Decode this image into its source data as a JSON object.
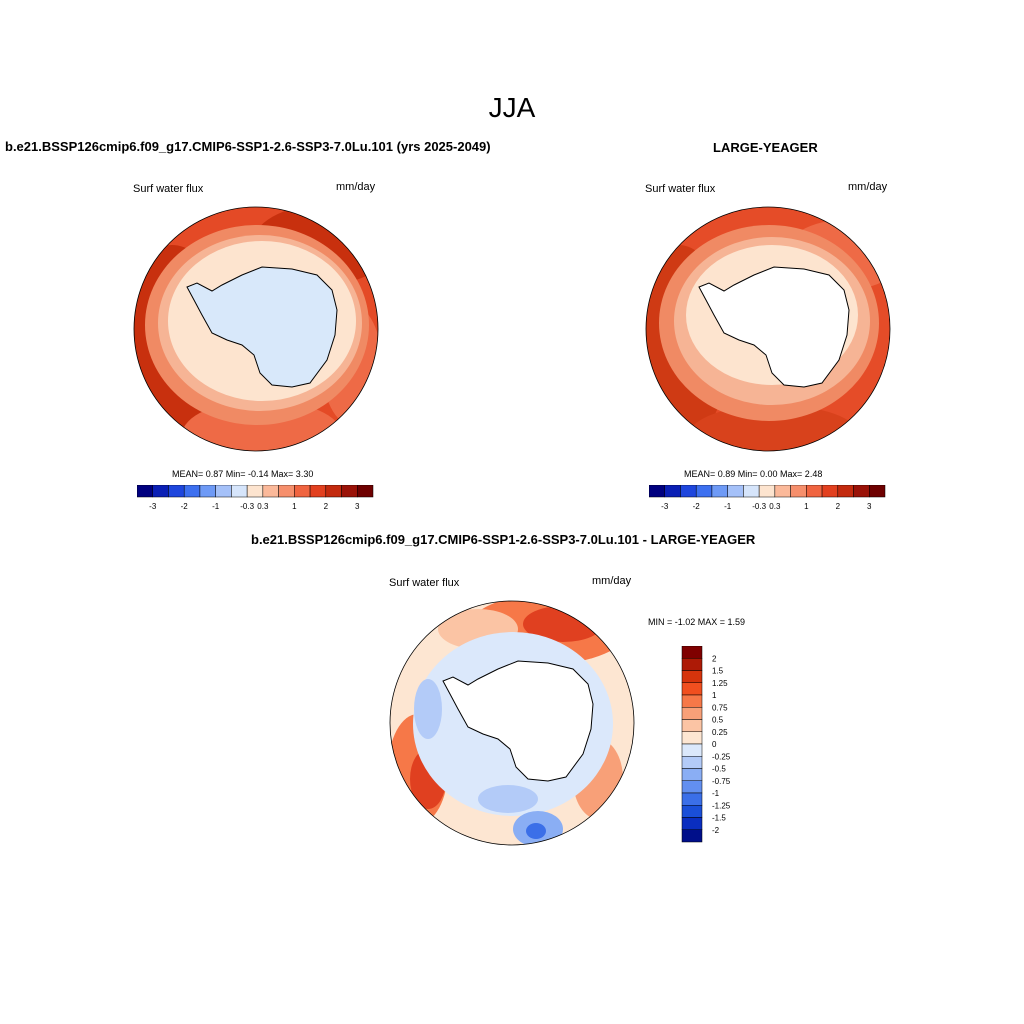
{
  "season": "JJA",
  "panels": [
    {
      "title": "b.e21.BSSP126cmip6.f09_g17.CMIP6-SSP1-2.6-SSP3-7.0Lu.101 (yrs 2025-2049)",
      "variable": "Surf water flux",
      "units": "mm/day",
      "stats": "MEAN=   0.87  Min=  -0.14  Max=   3.30",
      "fill_land": true
    },
    {
      "title": "LARGE-YEAGER",
      "variable": "Surf water flux",
      "units": "mm/day",
      "stats": "MEAN=   0.89  Min=   0.00  Max=   2.48",
      "fill_land": false
    },
    {
      "title": "b.e21.BSSP126cmip6.f09_g17.CMIP6-SSP1-2.6-SSP3-7.0Lu.101 - LARGE-YEAGER",
      "variable": "Surf water flux",
      "units": "mm/day",
      "stats": "MIN =  -1.02 MAX =   1.59"
    }
  ],
  "horizontal_colorbar": {
    "colors": [
      "#00007f",
      "#0a1fb5",
      "#1e46dd",
      "#3d70f0",
      "#6e9af6",
      "#a5c1f9",
      "#d6e5fb",
      "#fde4cf",
      "#fbb99a",
      "#f68f6c",
      "#f06440",
      "#e2401f",
      "#c32a0e",
      "#9a1208",
      "#6e0000"
    ],
    "tick_labels": [
      "-3",
      "-2",
      "-1",
      "-0.3",
      "0.3",
      "1",
      "2",
      "3"
    ]
  },
  "vertical_colorbar": {
    "colors": [
      "#7f0000",
      "#ad1a06",
      "#d6340c",
      "#f04f1f",
      "#f67848",
      "#f8a078",
      "#fbc4a4",
      "#fde6d2",
      "#dbe8fb",
      "#b3cbf8",
      "#8aaef4",
      "#628ff0",
      "#3b6fe8",
      "#1a4fd8",
      "#0a2ec0",
      "#000f8a"
    ],
    "tick_labels": [
      "2",
      "1.5",
      "1.25",
      "1",
      "0.75",
      "0.5",
      "0.25",
      "0",
      "-0.25",
      "-0.5",
      "-0.75",
      "-1",
      "-1.25",
      "-1.5",
      "-2"
    ]
  }
}
